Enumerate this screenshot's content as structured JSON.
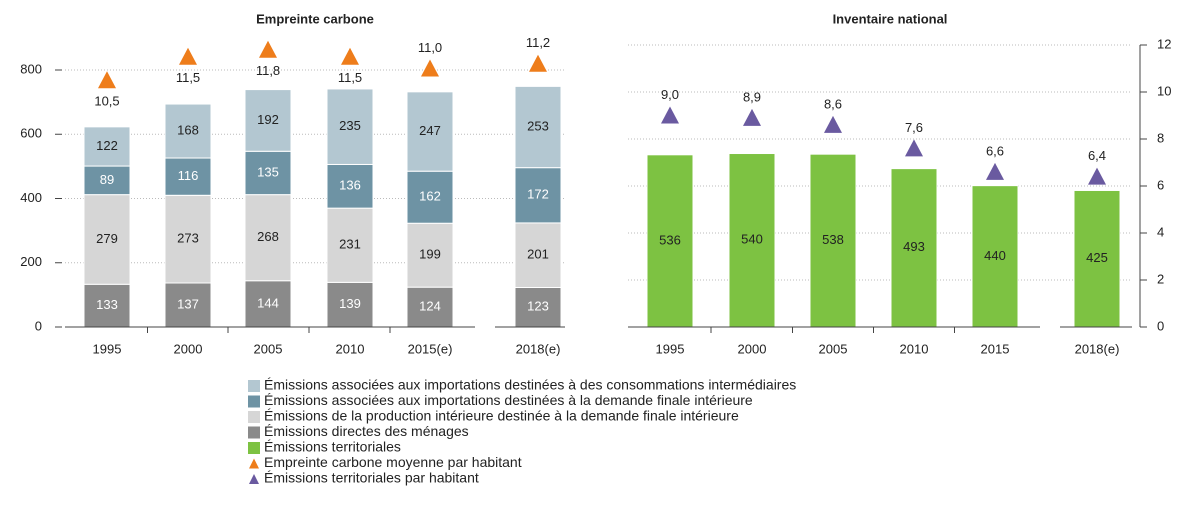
{
  "chart_data": [
    {
      "type": "bar",
      "stacked": true,
      "title": "Empreinte carbone",
      "categories": [
        "1995",
        "2000",
        "2005",
        "2010",
        "2015(e)",
        "2018(e)"
      ],
      "ylim": [
        0,
        800
      ],
      "yticks": [
        0,
        200,
        400,
        600,
        800
      ],
      "y2lim": [
        0,
        12
      ],
      "grid": true,
      "series": [
        {
          "name": "Émissions associées aux importations destinées à des consommations intermédiaires",
          "color": "#b3c7d1",
          "values": [
            122,
            168,
            192,
            235,
            247,
            253
          ]
        },
        {
          "name": "Émissions associées aux importations destinées à la demande finale intérieure",
          "color": "#6e93a4",
          "values": [
            89,
            116,
            135,
            136,
            162,
            172
          ]
        },
        {
          "name": "Émissions de la production intérieure destinée à la demande finale intérieure",
          "color": "#d6d6d6",
          "values": [
            279,
            273,
            268,
            231,
            199,
            201
          ]
        },
        {
          "name": "Émissions directes des ménages",
          "color": "#8a8a8a",
          "values": [
            133,
            137,
            144,
            139,
            124,
            123
          ]
        },
        {
          "name": "Empreinte carbone moyenne par habitant",
          "color": "#ee7d1b",
          "axis": "y2",
          "values": [
            10.5,
            11.5,
            11.8,
            11.5,
            11.0,
            11.2
          ],
          "value_labels": [
            "10,5",
            "11,5",
            "11,8",
            "11,5",
            "11,0",
            "11,2"
          ]
        }
      ]
    },
    {
      "type": "bar",
      "title": "Inventaire national",
      "categories": [
        "1995",
        "2000",
        "2005",
        "2010",
        "2015",
        "2018(e)"
      ],
      "ylim": [
        0,
        800
      ],
      "y2lim": [
        0,
        12
      ],
      "y2ticks": [
        0,
        2,
        4,
        6,
        8,
        10,
        12
      ],
      "grid": true,
      "series": [
        {
          "name": "Émissions territoriales",
          "color": "#7dc242",
          "values": [
            536,
            540,
            538,
            493,
            440,
            425
          ]
        },
        {
          "name": "Émissions territoriales par habitant",
          "color": "#6a5aa0",
          "axis": "y2",
          "values": [
            9.0,
            8.9,
            8.6,
            7.6,
            6.6,
            6.4
          ],
          "value_labels": [
            "9,0",
            "8,9",
            "8,6",
            "7,6",
            "6,6",
            "6,4"
          ]
        }
      ]
    }
  ]
}
